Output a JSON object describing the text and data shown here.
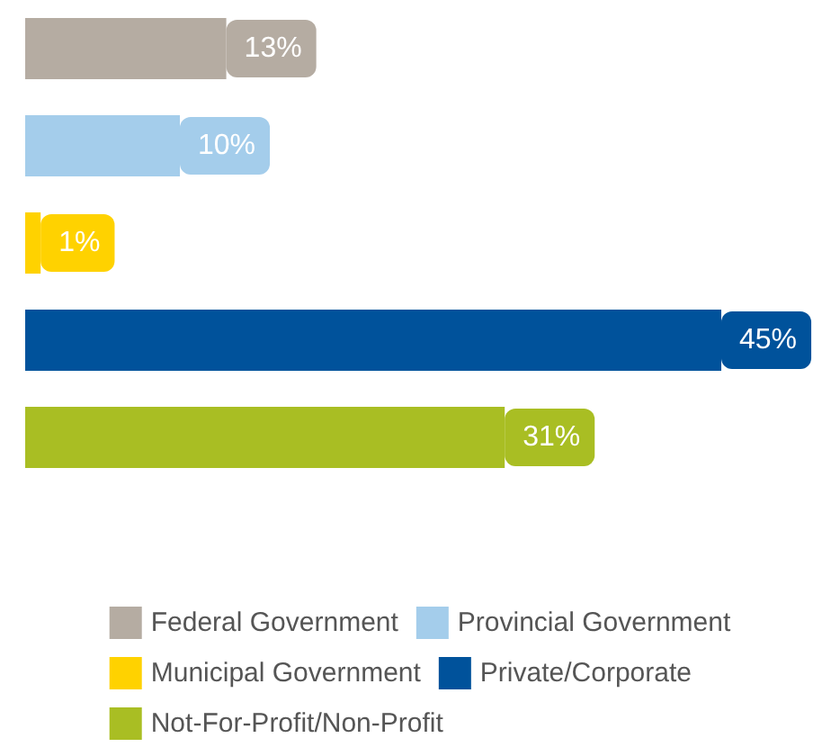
{
  "chart_data": {
    "type": "bar",
    "orientation": "horizontal",
    "stacked": true,
    "categories": [
      null,
      null,
      null,
      null,
      null
    ],
    "series": [
      {
        "name": "Federal Government",
        "color": "#b5aca2",
        "values": [
          13,
          null,
          null,
          null,
          null
        ],
        "value_labels": [
          "13%",
          null,
          null,
          null,
          null
        ]
      },
      {
        "name": "Provincial Government",
        "color": "#a4cdeb",
        "values": [
          null,
          10,
          null,
          null,
          null
        ],
        "value_labels": [
          null,
          "10%",
          null,
          null,
          null
        ]
      },
      {
        "name": "Municipal Government",
        "color": "#ffd200",
        "values": [
          null,
          null,
          1,
          null,
          null
        ],
        "value_labels": [
          null,
          null,
          "1%",
          null,
          null
        ]
      },
      {
        "name": "Private/Corporate",
        "color": "#00529b",
        "values": [
          null,
          null,
          null,
          45,
          null
        ],
        "value_labels": [
          null,
          null,
          null,
          "45%",
          null
        ]
      },
      {
        "name": "Not-For-Profit/Non-Profit",
        "color": "#a9be23",
        "values": [
          null,
          null,
          null,
          null,
          31
        ],
        "value_labels": [
          null,
          null,
          null,
          null,
          "31%"
        ]
      }
    ],
    "legend": "bottom",
    "tick_labels": false
  }
}
